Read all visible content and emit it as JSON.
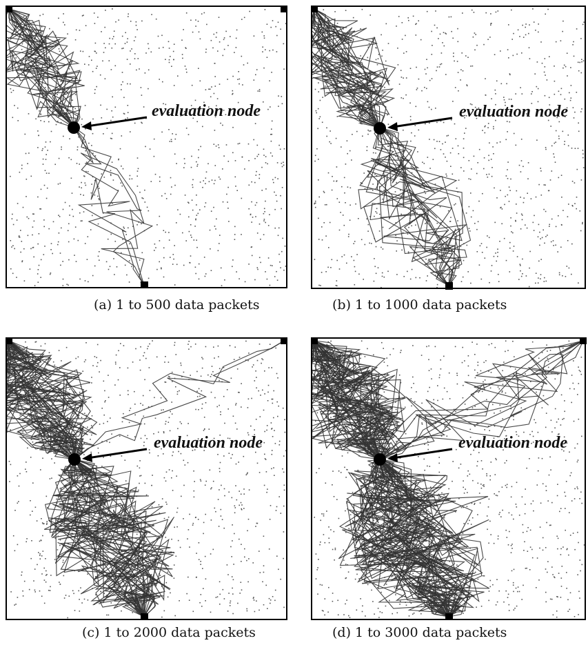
{
  "annotation_label": "evaluation node",
  "panels": [
    {
      "id": "a",
      "caption": "(a) 1 to 500 data packets",
      "packets": 500
    },
    {
      "id": "b",
      "caption": "(b) 1 to 1000 data packets",
      "packets": 1000
    },
    {
      "id": "c",
      "caption": "(c) 1 to 2000 data packets",
      "packets": 2000
    },
    {
      "id": "d",
      "caption": "(d) 1 to 3000 data packets",
      "packets": 3000
    }
  ],
  "colors": {
    "frame": "#000000",
    "path": "#333333",
    "sensor_dots": "#555555",
    "node": "#000000"
  }
}
